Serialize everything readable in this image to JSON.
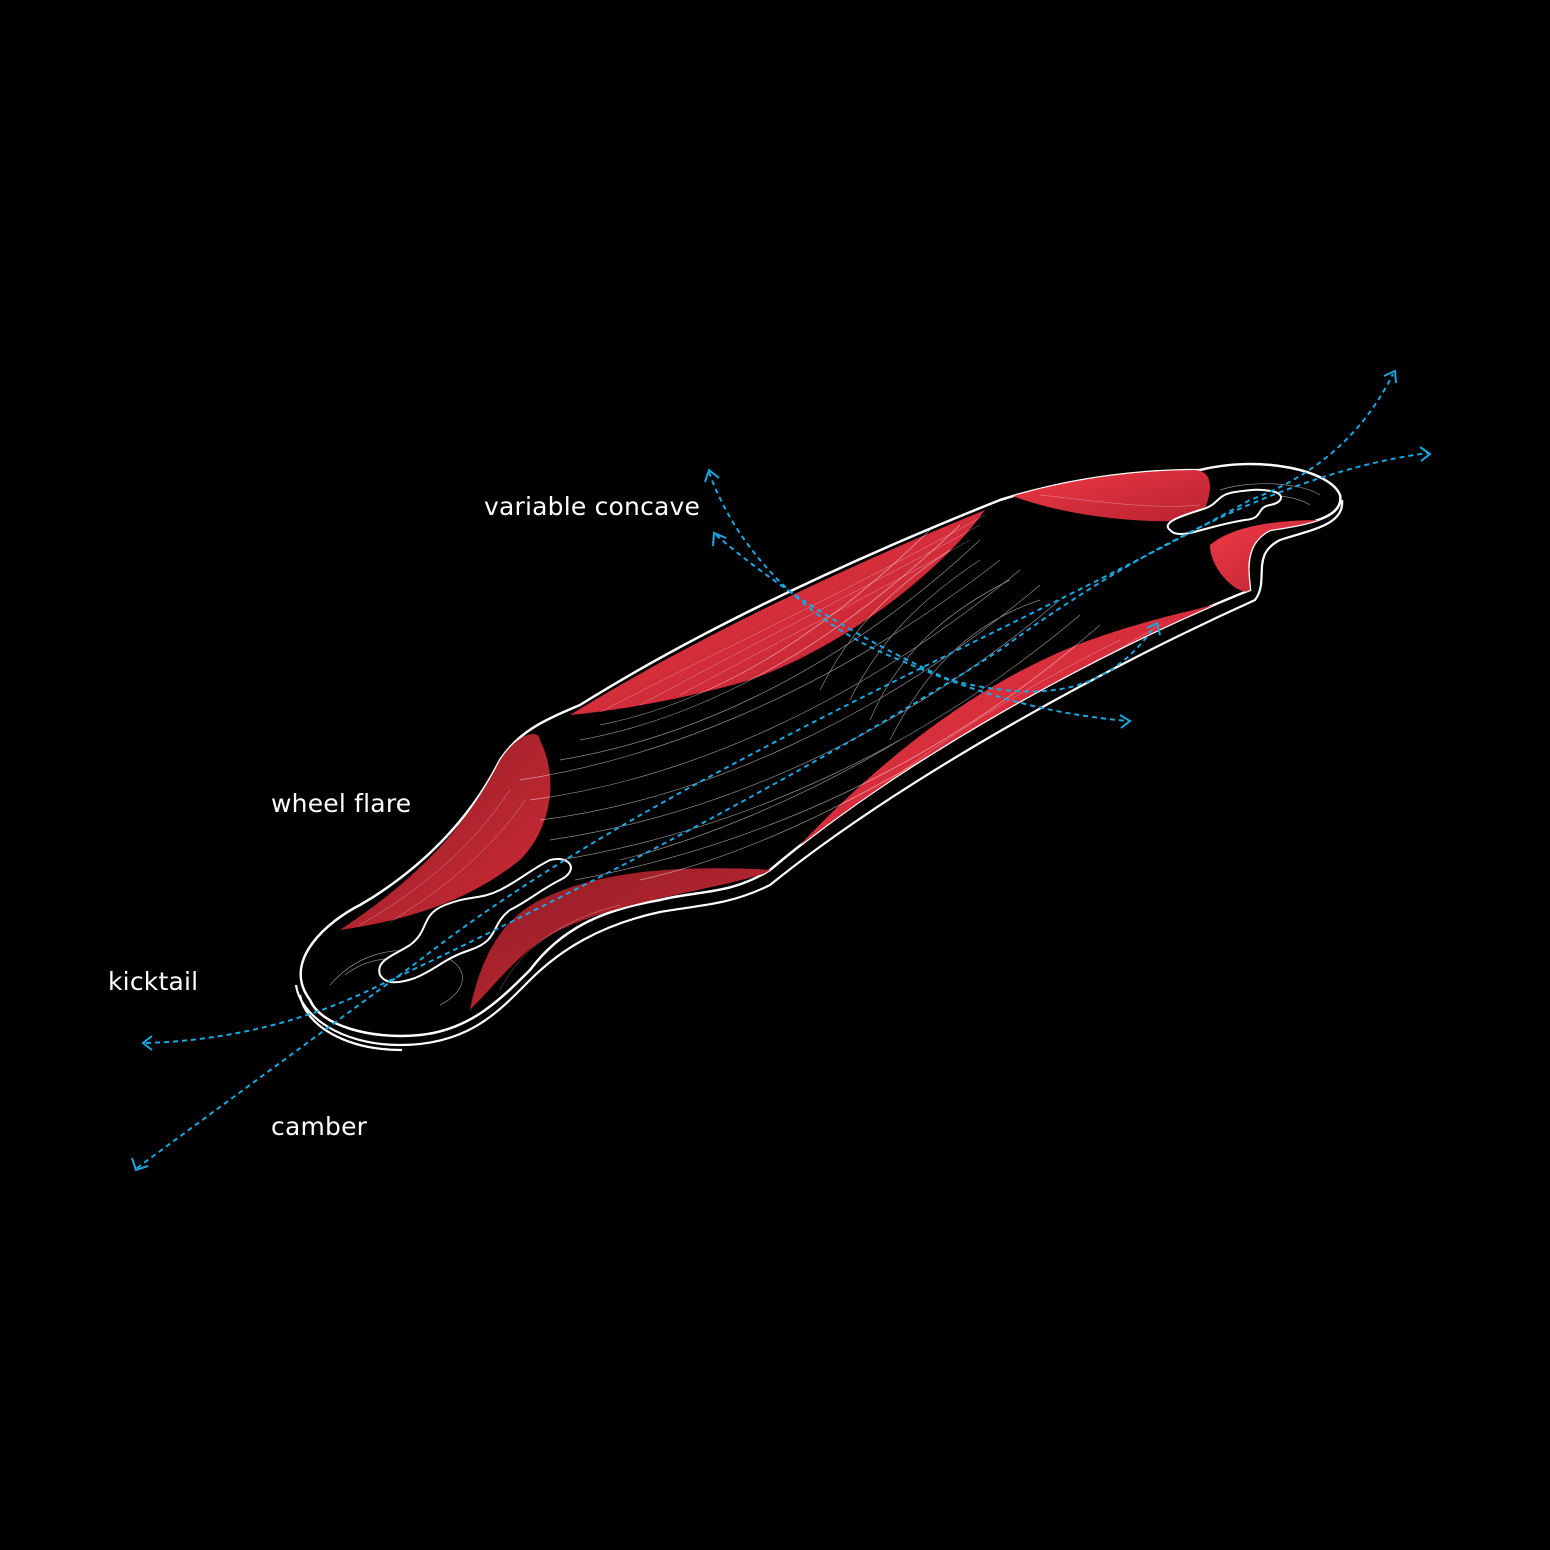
{
  "labels": {
    "variable_concave": "variable concave",
    "wheel_flare": "wheel flare",
    "kicktail": "kicktail",
    "camber": "camber"
  },
  "colors": {
    "background": "#000000",
    "outline": "#ffffff",
    "flare_fill": "#e8343f",
    "flare_fill_dark": "#a3222b",
    "arrow": "#1aa7e0"
  }
}
